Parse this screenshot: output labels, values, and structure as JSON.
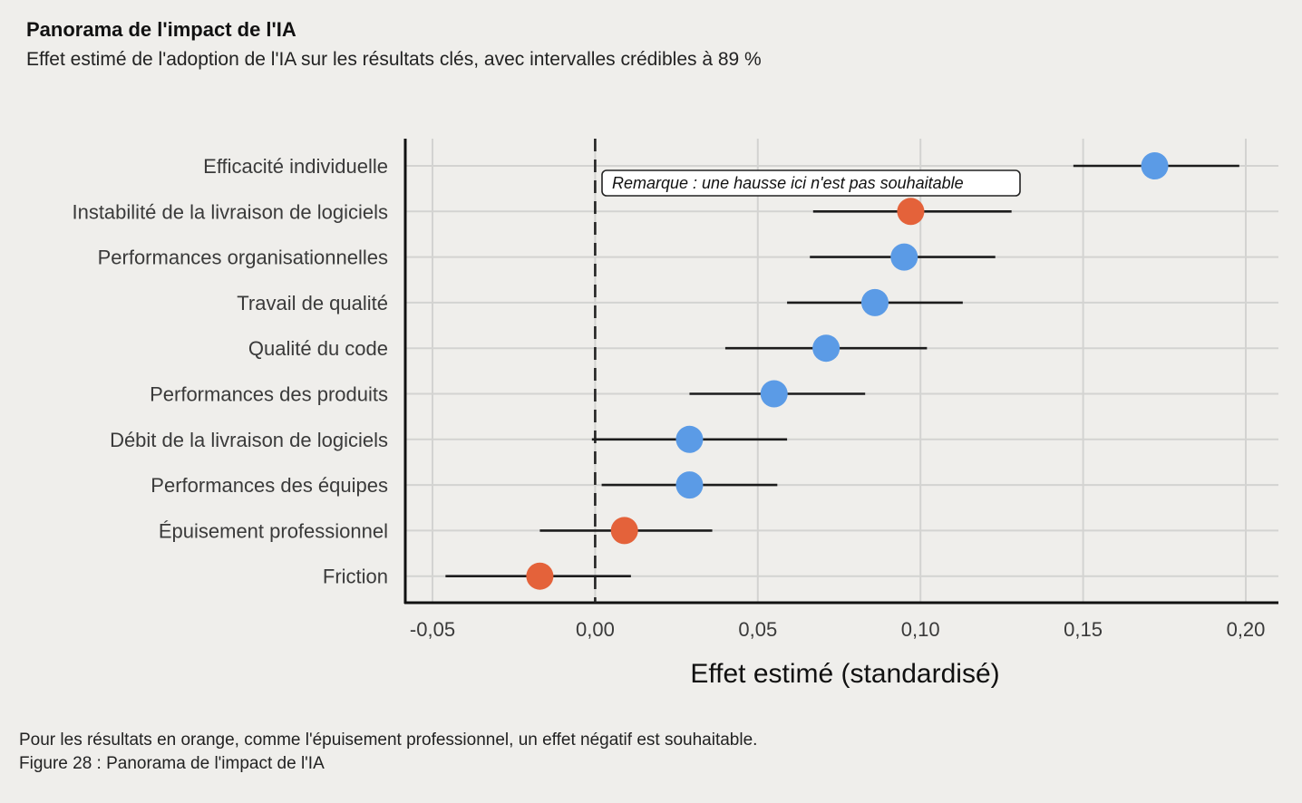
{
  "title": "Panorama de l'impact de l'IA",
  "subtitle": "Effet estimé de l'adoption de l'IA sur les résultats clés, avec intervalles crédibles à 89 %",
  "footnote": "Pour les résultats en orange, comme l'épuisement professionnel, un effet négatif est souhaitable.",
  "caption": "Figure 28 : Panorama de l'impact de l'IA",
  "colors": {
    "background": "#efeeeb",
    "blue": "#5b9be6",
    "orange": "#e4623a",
    "grid": "#d3d3d1",
    "line": "#1c1c1c"
  },
  "chart_data": {
    "type": "scatter",
    "subtype": "dot-with-interval",
    "xlabel": "Effet estimé (standardisé)",
    "ylabel": "",
    "xlim": [
      -0.058,
      0.21
    ],
    "xticks": [
      -0.05,
      0.0,
      0.05,
      0.1,
      0.15,
      0.2
    ],
    "xtick_labels": [
      "-0,05",
      "0,00",
      "0,05",
      "0,10",
      "0,15",
      "0,20"
    ],
    "grid": true,
    "reference_line": {
      "x": 0.0,
      "style": "dashed"
    },
    "annotation": {
      "text": "Remarque : une hausse ici n'est pas souhaitable",
      "near_category": "Instabilité de la livraison de logiciels"
    },
    "series": [
      {
        "category": "Efficacité individuelle",
        "estimate": 0.172,
        "lower": 0.147,
        "upper": 0.198,
        "color": "blue"
      },
      {
        "category": "Instabilité de la livraison de logiciels",
        "estimate": 0.097,
        "lower": 0.067,
        "upper": 0.128,
        "color": "orange"
      },
      {
        "category": "Performances organisationnelles",
        "estimate": 0.095,
        "lower": 0.066,
        "upper": 0.123,
        "color": "blue"
      },
      {
        "category": "Travail de qualité",
        "estimate": 0.086,
        "lower": 0.059,
        "upper": 0.113,
        "color": "blue"
      },
      {
        "category": "Qualité du code",
        "estimate": 0.071,
        "lower": 0.04,
        "upper": 0.102,
        "color": "blue"
      },
      {
        "category": "Performances des produits",
        "estimate": 0.055,
        "lower": 0.029,
        "upper": 0.083,
        "color": "blue"
      },
      {
        "category": "Débit de la livraison de logiciels",
        "estimate": 0.029,
        "lower": -0.001,
        "upper": 0.059,
        "color": "blue"
      },
      {
        "category": "Performances des équipes",
        "estimate": 0.029,
        "lower": 0.002,
        "upper": 0.056,
        "color": "blue"
      },
      {
        "category": "Épuisement professionnel",
        "estimate": 0.009,
        "lower": -0.017,
        "upper": 0.036,
        "color": "orange"
      },
      {
        "category": "Friction",
        "estimate": -0.017,
        "lower": -0.046,
        "upper": 0.011,
        "color": "orange"
      }
    ]
  }
}
